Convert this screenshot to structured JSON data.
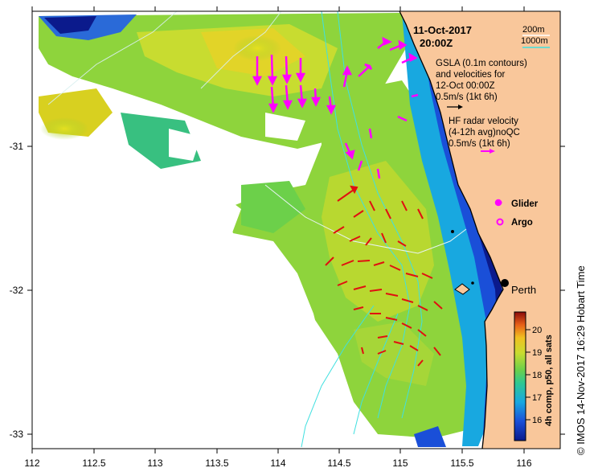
{
  "header": {
    "date": "11-Oct-2017",
    "time": "20:00Z"
  },
  "legend": {
    "depth_200": "200m",
    "depth_1000": "1000m",
    "gsla_line1": "GSLA (0.1m contours)",
    "gsla_line2": "and velocities for",
    "gsla_line3": "12-Oct 00:00Z",
    "gsla_scale": "0.5m/s (1kt 6h)",
    "hf_line1": "HF radar velocity",
    "hf_line2": "(4-12h avg)noQC",
    "hf_scale": "0.5m/s (1kt 6h)",
    "glider": "Glider",
    "argo": "Argo"
  },
  "place": {
    "city": "Perth"
  },
  "axes": {
    "x_ticks": [
      "112",
      "112.5",
      "113",
      "113.5",
      "114",
      "114.5",
      "115",
      "115.5",
      "116"
    ],
    "y_ticks": [
      "-31",
      "-32",
      "-33"
    ]
  },
  "colorbar": {
    "label": "4h comp, p50, all sats",
    "ticks": [
      "16",
      "17",
      "18",
      "19",
      "20"
    ]
  },
  "credit": "© IMOS 14-Nov-2017 16:29 Hobart Time",
  "colors": {
    "land": "#f9c79b",
    "coast_blue": "#1a237e",
    "hf_arrow": "#e01010",
    "gsla_arrow": "#ff00ff",
    "contour": "#40e0e0"
  }
}
